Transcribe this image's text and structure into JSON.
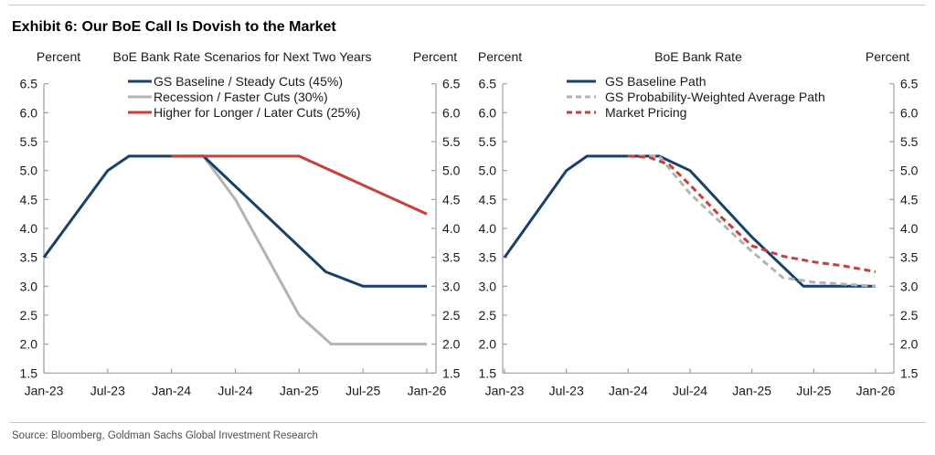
{
  "page": {
    "title": "Exhibit 6: Our BoE Call Is Dovish to the Market",
    "source": "Source: Bloomberg, Goldman Sachs Global Investment Research"
  },
  "chart_data": [
    {
      "type": "line",
      "title": "BoE Bank Rate Scenarios for Next Two Years",
      "y_axis_label_left": "Percent",
      "y_axis_label_right": "Percent",
      "ylim": [
        1.5,
        6.5
      ],
      "ytick_step": 0.5,
      "x_tick_labels": [
        "Jan-23",
        "Jul-23",
        "Jan-24",
        "Jul-24",
        "Jan-25",
        "Jul-25",
        "Jan-26"
      ],
      "x_total_months": 36,
      "grid": false,
      "legend_position": "top-inside",
      "legend_order": [
        1,
        0,
        2
      ],
      "series": [
        {
          "name": "Recession / Faster Cuts (30%)",
          "color": "#b3b3b3",
          "dashed": false,
          "points_month_value": [
            [
              13,
              5.25
            ],
            [
              15,
              5.25
            ],
            [
              18,
              4.5
            ],
            [
              24,
              2.5
            ],
            [
              27,
              2.0
            ],
            [
              36,
              2.0
            ]
          ]
        },
        {
          "name": "GS Baseline / Steady Cuts (45%)",
          "color": "#18406e",
          "dashed": false,
          "points_month_value": [
            [
              0,
              3.5
            ],
            [
              6,
              5.0
            ],
            [
              8,
              5.25
            ],
            [
              15,
              5.25
            ],
            [
              26.5,
              3.25
            ],
            [
              30,
              3.0
            ],
            [
              36,
              3.0
            ]
          ]
        },
        {
          "name": "Higher for Longer / Later Cuts (25%)",
          "color": "#cc3e39",
          "dashed": false,
          "points_month_value": [
            [
              12,
              5.25
            ],
            [
              24,
              5.25
            ],
            [
              36,
              4.25
            ]
          ]
        }
      ]
    },
    {
      "type": "line",
      "title": "BoE Bank Rate",
      "y_axis_label_left": "Percent",
      "y_axis_label_right": "Percent",
      "ylim": [
        1.5,
        6.5
      ],
      "ytick_step": 0.5,
      "x_tick_labels": [
        "Jan-23",
        "Jul-23",
        "Jan-24",
        "Jul-24",
        "Jan-25",
        "Jul-25",
        "Jan-26"
      ],
      "x_total_months": 36,
      "grid": false,
      "legend_position": "top-inside",
      "legend_order": [
        0,
        1,
        2
      ],
      "series": [
        {
          "name": "GS Baseline Path",
          "color": "#18406e",
          "dashed": false,
          "points_month_value": [
            [
              0,
              3.5
            ],
            [
              6,
              5.0
            ],
            [
              8,
              5.25
            ],
            [
              15,
              5.25
            ],
            [
              18,
              5.0
            ],
            [
              24,
              3.85
            ],
            [
              29,
              3.0
            ],
            [
              36,
              3.0
            ]
          ]
        },
        {
          "name": "GS Probability-Weighted Average Path",
          "color": "#b3b3b3",
          "dashed": true,
          "points_month_value": [
            [
              12,
              5.25
            ],
            [
              15,
              5.25
            ],
            [
              18,
              4.6
            ],
            [
              21,
              4.1
            ],
            [
              24,
              3.6
            ],
            [
              27,
              3.15
            ],
            [
              30,
              3.07
            ],
            [
              36,
              3.0
            ]
          ]
        },
        {
          "name": "Market Pricing",
          "color": "#cc3e39",
          "dashed": true,
          "points_month_value": [
            [
              12,
              5.25
            ],
            [
              14,
              5.23
            ],
            [
              16,
              5.1
            ],
            [
              18,
              4.75
            ],
            [
              21,
              4.2
            ],
            [
              24,
              3.7
            ],
            [
              27,
              3.52
            ],
            [
              30,
              3.42
            ],
            [
              33,
              3.35
            ],
            [
              36,
              3.25
            ]
          ]
        }
      ]
    }
  ]
}
